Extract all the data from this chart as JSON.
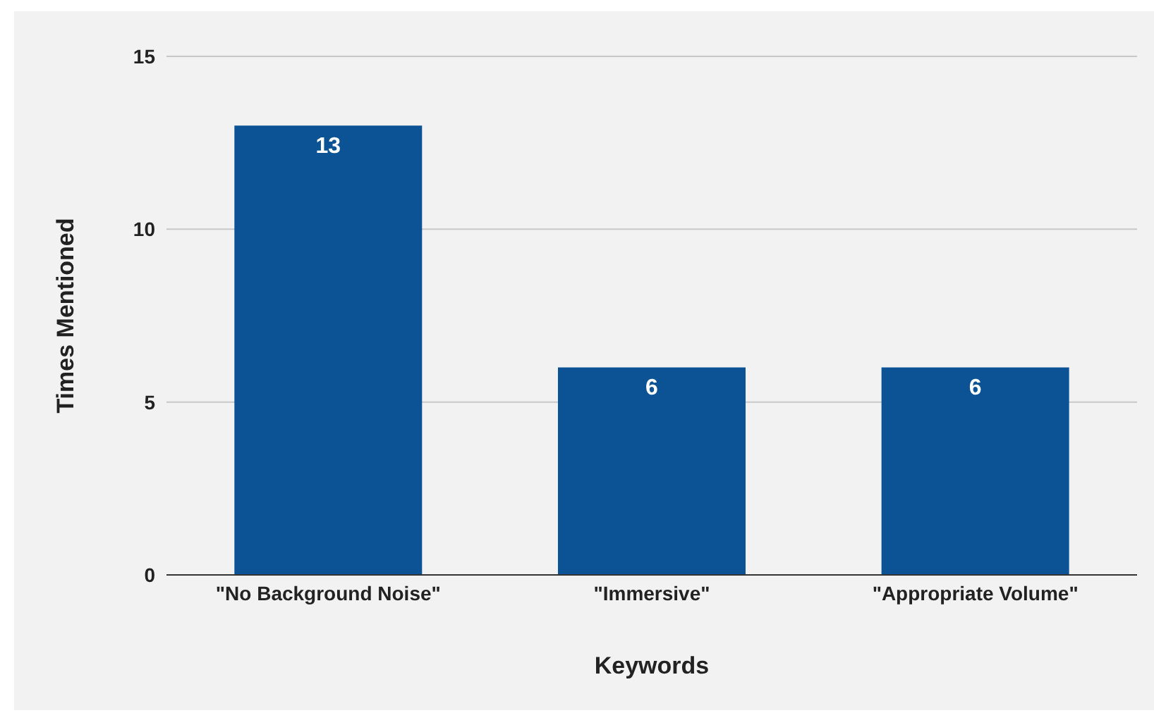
{
  "chart_data": {
    "type": "bar",
    "xlabel": "Keywords",
    "ylabel": "Times Mentioned",
    "categories": [
      "\"No Background Noise\"",
      "\"Immersive\"",
      "\"Appropriate Volume\""
    ],
    "values": [
      13,
      6,
      6
    ],
    "color": "#0b5394",
    "ylim": [
      0,
      15
    ],
    "yticks": [
      0,
      5,
      10,
      15
    ],
    "grid": "y",
    "data_labels": true,
    "legend": false
  }
}
